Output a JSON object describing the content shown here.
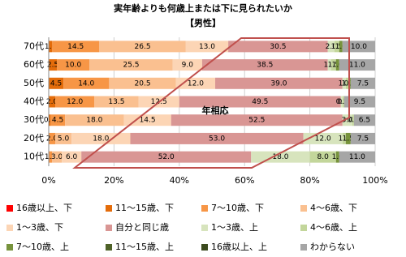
{
  "chart_data": {
    "type": "stacked-barh",
    "title": "実年齢よりも何歳上または下に見られたいか",
    "subtitle": "【男性】",
    "annotation": "年相応",
    "categories": [
      "70代",
      "60代",
      "50代",
      "40代",
      "30代",
      "20代",
      "10代"
    ],
    "xlim": [
      0,
      100
    ],
    "xticks": [
      {
        "value": 0,
        "label": "0%"
      },
      {
        "value": 20,
        "label": "20%"
      },
      {
        "value": 40,
        "label": "40%"
      },
      {
        "value": 60,
        "label": "60%"
      },
      {
        "value": 80,
        "label": "80%"
      },
      {
        "value": 100,
        "label": "100%"
      }
    ],
    "grid": true,
    "series": [
      {
        "name": "16歳以上、下",
        "color": "#ff0000",
        "values": [
          0,
          0,
          0,
          0,
          0,
          0,
          0
        ],
        "value_labels": [
          "0.0",
          "0.0",
          "0.0",
          "0.0",
          "0.0",
          "0.0",
          "0.0"
        ]
      },
      {
        "name": "11～15歳、下",
        "color": "#e46c0a",
        "values": [
          1.0,
          2.5,
          4.5,
          2.0,
          0.5,
          0,
          0
        ],
        "value_labels": [
          "1.0",
          "2.5",
          "4.5",
          "2.0",
          "0.5",
          "0.0",
          "0.0"
        ]
      },
      {
        "name": "7～10歳、下",
        "color": "#f79646",
        "values": [
          14.5,
          10.0,
          14.0,
          12.0,
          4.5,
          2.0,
          1.0
        ],
        "value_labels": [
          "14.5",
          "10.0",
          "14.0",
          "12.0",
          "4.5",
          "2.0",
          "1.0"
        ]
      },
      {
        "name": "4～6歳、下",
        "color": "#fac090",
        "values": [
          26.5,
          25.5,
          20.5,
          13.5,
          18.0,
          5.0,
          3.0
        ],
        "value_labels": [
          "26.5",
          "25.5",
          "20.5",
          "13.5",
          "18.0",
          "5.0",
          "3.0"
        ]
      },
      {
        "name": "1～3歳、下",
        "color": "#fcd5b5",
        "values": [
          13.0,
          9.0,
          12.0,
          12.5,
          14.5,
          18.0,
          6.0
        ],
        "value_labels": [
          "13.0",
          "9.0",
          "12.0",
          "12.5",
          "14.5",
          "18.0",
          "6.0"
        ]
      },
      {
        "name": "自分と同じ歳",
        "color": "#d99694",
        "values": [
          30.5,
          38.5,
          39.0,
          49.5,
          52.5,
          53.0,
          52.0
        ],
        "value_labels": [
          "30.5",
          "38.5",
          "39.0",
          "49.5",
          "52.5",
          "53.0",
          "52.0"
        ]
      },
      {
        "name": "1～3歳、上",
        "color": "#d7e4bd",
        "values": [
          2.0,
          1.0,
          1.0,
          0.5,
          3.0,
          12.0,
          18.0
        ],
        "value_labels": [
          "2.0",
          "1.0",
          "1.0",
          "0.5",
          "3.0",
          "12.0",
          "18.0"
        ]
      },
      {
        "name": "4～6歳、上",
        "color": "#c3d69b",
        "values": [
          1.5,
          1.5,
          1.0,
          0.5,
          0.5,
          1.0,
          8.0
        ],
        "value_labels": [
          "1.5",
          "1.5",
          "1.0",
          "0.5",
          "0.5",
          "1.0",
          "8.0"
        ]
      },
      {
        "name": "7～10歳、上",
        "color": "#77933c",
        "values": [
          1.0,
          1.0,
          0.5,
          0,
          0,
          1.5,
          1.0
        ],
        "value_labels": [
          "1.0",
          "1.0",
          "0.5",
          "0.0",
          "0.0",
          "1.5",
          "1.0"
        ]
      },
      {
        "name": "11～15歳、上",
        "color": "#4f6228",
        "values": [
          0,
          0,
          0,
          0,
          0,
          0,
          0
        ],
        "value_labels": [
          "0.0",
          "0.0",
          "0.0",
          "0.0",
          "0.0",
          "0.0",
          "0.0"
        ]
      },
      {
        "name": "16歳以上、上",
        "color": "#3b4a1e",
        "values": [
          0,
          0,
          0,
          0,
          0,
          0,
          0
        ],
        "value_labels": [
          "0.0",
          "0.0",
          "0.0",
          "0.0",
          "0.0",
          "0.0",
          "0.0"
        ]
      },
      {
        "name": "わからない",
        "color": "#a6a6a6",
        "values": [
          10.0,
          11.0,
          7.5,
          9.5,
          6.5,
          7.5,
          11.0
        ],
        "value_labels": [
          "10.0",
          "11.0",
          "7.5",
          "9.5",
          "6.5",
          "7.5",
          "11.0"
        ]
      }
    ]
  }
}
